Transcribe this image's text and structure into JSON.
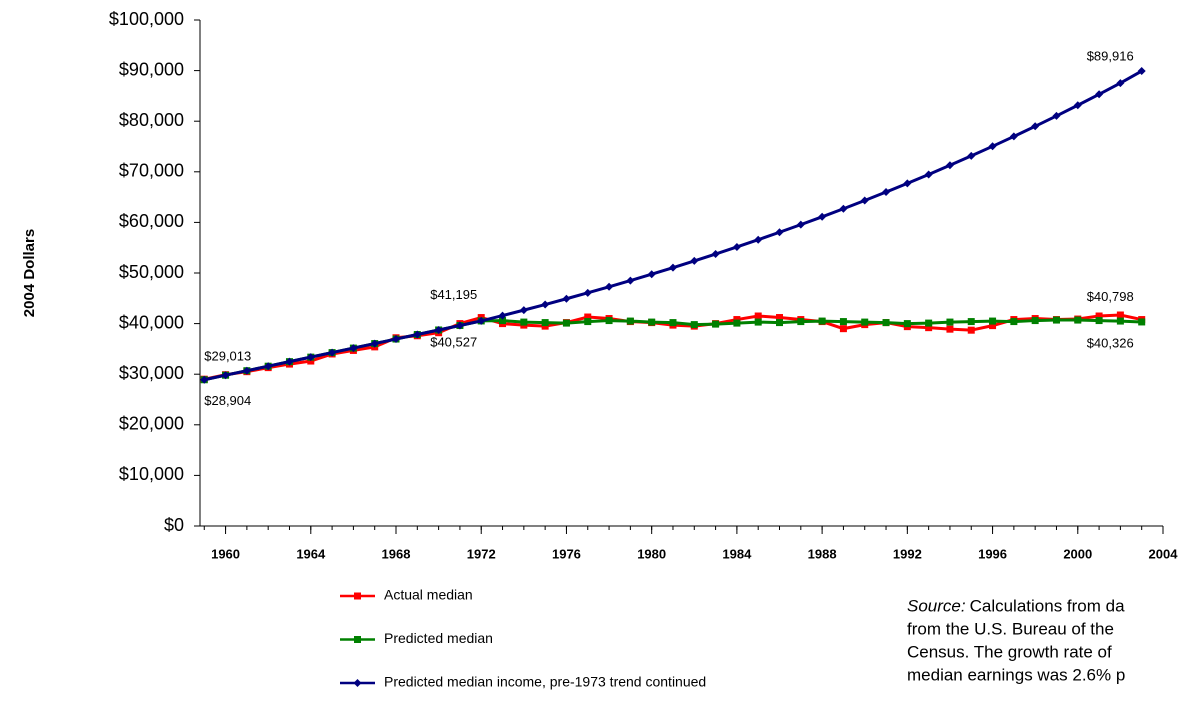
{
  "chart_data": {
    "type": "line",
    "y_label": "2004 Dollars",
    "x": [
      1959,
      1960,
      1961,
      1962,
      1963,
      1964,
      1965,
      1966,
      1967,
      1968,
      1969,
      1970,
      1971,
      1972,
      1973,
      1974,
      1975,
      1976,
      1977,
      1978,
      1979,
      1980,
      1981,
      1982,
      1983,
      1984,
      1985,
      1986,
      1987,
      1988,
      1989,
      1990,
      1991,
      1992,
      1993,
      1994,
      1995,
      1996,
      1997,
      1998,
      1999,
      2000,
      2001,
      2002,
      2003
    ],
    "xlim": [
      1958.8,
      2004
    ],
    "xticks": [
      1960,
      1964,
      1968,
      1972,
      1976,
      1980,
      1984,
      1988,
      1992,
      1996,
      2000,
      2004
    ],
    "ylim": [
      0,
      100000
    ],
    "yticks": [
      {
        "value": 0,
        "label": "$0"
      },
      {
        "value": 10000,
        "label": "$10,000"
      },
      {
        "value": 20000,
        "label": "$20,000"
      },
      {
        "value": 30000,
        "label": "$30,000"
      },
      {
        "value": 40000,
        "label": "$40,000"
      },
      {
        "value": 50000,
        "label": "$50,000"
      },
      {
        "value": 60000,
        "label": "$60,000"
      },
      {
        "value": 70000,
        "label": "$70,000"
      },
      {
        "value": 80000,
        "label": "$80,000"
      },
      {
        "value": 90000,
        "label": "$90,000"
      },
      {
        "value": 100000,
        "label": "$100,000"
      }
    ],
    "series": [
      {
        "name": "Actual median",
        "color": "#ff0000",
        "marker": "square",
        "values": [
          29013,
          29900,
          30500,
          31300,
          32000,
          32600,
          34000,
          34700,
          35400,
          37200,
          37600,
          38200,
          40000,
          41195,
          40000,
          39700,
          39500,
          40200,
          41300,
          41000,
          40400,
          40200,
          39700,
          39500,
          40000,
          40800,
          41500,
          41200,
          40800,
          40400,
          39000,
          39800,
          40200,
          39400,
          39200,
          38900,
          38700,
          39600,
          40800,
          41000,
          40800,
          40900,
          41500,
          41700,
          40798
        ],
        "value_labels": [
          "$29,013",
          null,
          null,
          null,
          null,
          null,
          null,
          null,
          null,
          null,
          null,
          null,
          null,
          "$41,195",
          null,
          null,
          null,
          null,
          null,
          null,
          null,
          null,
          null,
          null,
          null,
          null,
          null,
          null,
          null,
          null,
          null,
          null,
          null,
          null,
          null,
          null,
          null,
          null,
          null,
          null,
          null,
          null,
          null,
          null,
          "$40,798"
        ]
      },
      {
        "name": "Predicted median",
        "color": "#008000",
        "marker": "square",
        "values": [
          28904,
          29800,
          30690,
          31580,
          32480,
          33370,
          34270,
          35160,
          36050,
          36950,
          37840,
          38740,
          39630,
          40527,
          40600,
          40300,
          40200,
          40100,
          40400,
          40600,
          40500,
          40300,
          40200,
          39800,
          39900,
          40100,
          40300,
          40200,
          40400,
          40500,
          40400,
          40300,
          40200,
          40000,
          40100,
          40300,
          40400,
          40500,
          40400,
          40600,
          40700,
          40700,
          40600,
          40500,
          40326
        ],
        "value_labels": [
          "$28,904",
          null,
          null,
          null,
          null,
          null,
          null,
          null,
          null,
          null,
          null,
          null,
          null,
          "$40,527",
          null,
          null,
          null,
          null,
          null,
          null,
          null,
          null,
          null,
          null,
          null,
          null,
          null,
          null,
          null,
          null,
          null,
          null,
          null,
          null,
          null,
          null,
          null,
          null,
          null,
          null,
          null,
          null,
          null,
          null,
          "$40,326"
        ]
      },
      {
        "name": "Predicted median income, pre-1973  trend continued",
        "color": "#000080",
        "marker": "diamond",
        "values": [
          28904,
          29800,
          30690,
          31580,
          32480,
          33370,
          34270,
          35160,
          36050,
          36950,
          37840,
          38740,
          39630,
          40527,
          41581,
          42662,
          43771,
          44909,
          46077,
          47275,
          48504,
          49765,
          51059,
          52387,
          53749,
          55146,
          56580,
          58051,
          59560,
          61109,
          62698,
          64328,
          66000,
          67716,
          69477,
          71283,
          73137,
          75038,
          76989,
          78991,
          81045,
          83152,
          85314,
          87532,
          89916
        ],
        "value_labels": [
          null,
          null,
          null,
          null,
          null,
          null,
          null,
          null,
          null,
          null,
          null,
          null,
          null,
          null,
          null,
          null,
          null,
          null,
          null,
          null,
          null,
          null,
          null,
          null,
          null,
          null,
          null,
          null,
          null,
          null,
          null,
          null,
          null,
          null,
          null,
          null,
          null,
          null,
          null,
          null,
          null,
          null,
          null,
          null,
          "$89,916"
        ]
      }
    ]
  },
  "source": {
    "label": "Source:",
    "lines": [
      "Calculations from da",
      "from the U.S. Bureau of the",
      "Census. The growth rate of",
      "median earnings was 2.6% p"
    ]
  }
}
